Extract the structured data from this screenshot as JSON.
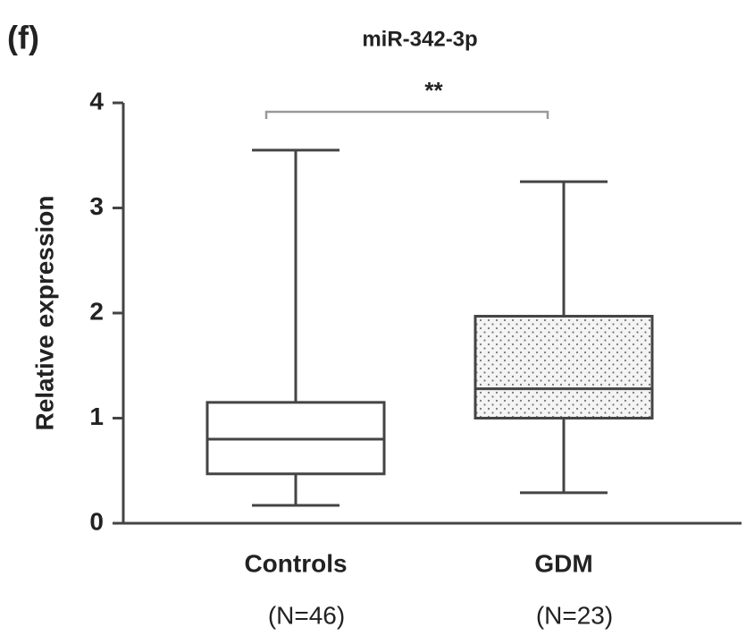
{
  "chart_data": {
    "type": "box",
    "panel_label": "(f)",
    "title": "miR-342-3p",
    "y_label": "Relative expression",
    "categories": [
      "Controls",
      "GDM"
    ],
    "group_sizes": [
      "(N=46)",
      "(N=23)"
    ],
    "boxes": [
      {
        "min": 0.17,
        "q1": 0.47,
        "median": 0.8,
        "q3": 1.15,
        "max": 3.55
      },
      {
        "min": 0.29,
        "q1": 1.0,
        "median": 1.28,
        "q3": 1.97,
        "max": 3.25
      }
    ],
    "box_fills": [
      "none",
      "dots"
    ],
    "significance": {
      "label": "**",
      "between": [
        "Controls",
        "GDM"
      ]
    },
    "ylim": [
      0,
      4
    ],
    "yticks": [
      0,
      1,
      2,
      3,
      4
    ],
    "grid": false
  }
}
